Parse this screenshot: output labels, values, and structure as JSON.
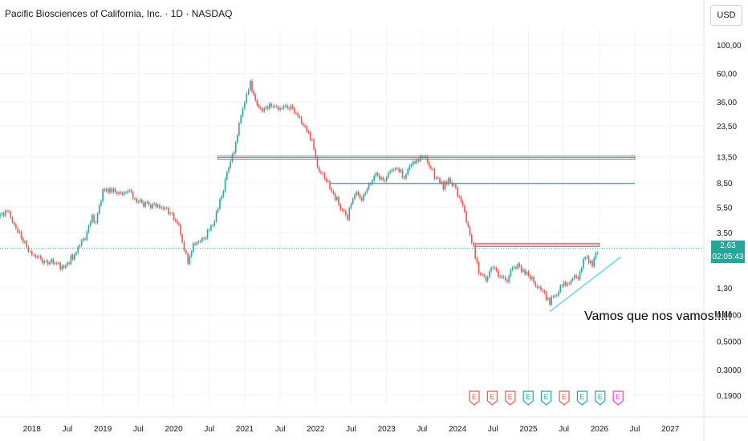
{
  "header": {
    "title": "Pacific Biosciences of California, Inc. · 1D · NASDAQ",
    "currency": "USD"
  },
  "price_tag": {
    "price": "2,63",
    "countdown": "02:05:43",
    "color": "#26a69a"
  },
  "annotation": "Vamos que nos vamos!!!!!",
  "colors": {
    "up": "#26a69a",
    "down": "#ef5350",
    "trendline": "#7fdbe4",
    "resistance": "#808080",
    "support": "#26a69a",
    "earnings_up": "#26a69a",
    "earnings_down": "#ef5350",
    "earnings_future": "#e040fb"
  },
  "earnings_markers": [
    {
      "label": "E",
      "color": "down"
    },
    {
      "label": "E",
      "color": "down"
    },
    {
      "label": "E",
      "color": "down"
    },
    {
      "label": "E",
      "color": "up"
    },
    {
      "label": "E",
      "color": "up"
    },
    {
      "label": "E",
      "color": "down"
    },
    {
      "label": "E",
      "color": "up"
    },
    {
      "label": "E",
      "color": "up"
    },
    {
      "label": "E",
      "color": "future"
    }
  ],
  "chart_data": {
    "type": "line",
    "series": [
      {
        "values": [
          [
            2017.55,
            4.6
          ],
          [
            2017.65,
            5.4
          ],
          [
            2017.75,
            4.0
          ],
          [
            2017.85,
            3.2
          ],
          [
            2017.95,
            2.5
          ],
          [
            2018.0,
            2.3
          ],
          [
            2018.15,
            2.1
          ],
          [
            2018.3,
            2.05
          ],
          [
            2018.45,
            1.85
          ],
          [
            2018.55,
            2.2
          ],
          [
            2018.65,
            2.6
          ],
          [
            2018.75,
            3.2
          ],
          [
            2018.85,
            4.5
          ],
          [
            2018.9,
            4.0
          ],
          [
            2019.0,
            7.6
          ],
          [
            2019.1,
            7.3
          ],
          [
            2019.25,
            7.1
          ],
          [
            2019.35,
            7.2
          ],
          [
            2019.5,
            6.2
          ],
          [
            2019.6,
            5.8
          ],
          [
            2019.75,
            5.5
          ],
          [
            2019.9,
            5.3
          ],
          [
            2019.95,
            5.0
          ],
          [
            2020.05,
            4.3
          ],
          [
            2020.12,
            3.0
          ],
          [
            2020.2,
            2.0
          ],
          [
            2020.3,
            3.0
          ],
          [
            2020.45,
            3.3
          ],
          [
            2020.55,
            4.0
          ],
          [
            2020.65,
            6.0
          ],
          [
            2020.75,
            10.0
          ],
          [
            2020.85,
            15.0
          ],
          [
            2020.92,
            25.0
          ],
          [
            2021.0,
            37.0
          ],
          [
            2021.08,
            52.0
          ],
          [
            2021.15,
            35.0
          ],
          [
            2021.25,
            29.0
          ],
          [
            2021.35,
            35.0
          ],
          [
            2021.45,
            32.0
          ],
          [
            2021.55,
            33.0
          ],
          [
            2021.65,
            32.0
          ],
          [
            2021.75,
            28.0
          ],
          [
            2021.85,
            24.0
          ],
          [
            2021.95,
            18.0
          ],
          [
            2022.05,
            10.0
          ],
          [
            2022.15,
            9.0
          ],
          [
            2022.25,
            7.0
          ],
          [
            2022.35,
            5.5
          ],
          [
            2022.45,
            4.6
          ],
          [
            2022.55,
            7.0
          ],
          [
            2022.65,
            6.5
          ],
          [
            2022.75,
            8.0
          ],
          [
            2022.85,
            10.0
          ],
          [
            2022.95,
            9.0
          ],
          [
            2023.05,
            10.0
          ],
          [
            2023.15,
            11.0
          ],
          [
            2023.25,
            9.5
          ],
          [
            2023.35,
            12.0
          ],
          [
            2023.45,
            13.0
          ],
          [
            2023.5,
            14.0
          ],
          [
            2023.6,
            12.0
          ],
          [
            2023.7,
            9.0
          ],
          [
            2023.8,
            8.0
          ],
          [
            2023.9,
            9.0
          ],
          [
            2024.0,
            7.0
          ],
          [
            2024.1,
            5.0
          ],
          [
            2024.2,
            3.0
          ],
          [
            2024.3,
            1.7
          ],
          [
            2024.4,
            1.5
          ],
          [
            2024.5,
            1.9
          ],
          [
            2024.6,
            1.6
          ],
          [
            2024.7,
            1.5
          ],
          [
            2024.8,
            2.0
          ],
          [
            2024.9,
            1.8
          ],
          [
            2025.0,
            1.6
          ],
          [
            2025.1,
            1.4
          ],
          [
            2025.2,
            1.2
          ],
          [
            2025.3,
            1.0
          ],
          [
            2025.4,
            1.2
          ],
          [
            2025.5,
            1.4
          ],
          [
            2025.6,
            1.5
          ],
          [
            2025.7,
            1.6
          ],
          [
            2025.8,
            2.3
          ],
          [
            2025.9,
            2.0
          ],
          [
            2026.0,
            2.63
          ]
        ]
      }
    ],
    "levels": [
      {
        "value": 13.3,
        "from": 2020.62,
        "to": 2026.5,
        "style": "resistance"
      },
      {
        "value": 8.4,
        "from": 2022.2,
        "to": 2026.5,
        "style": "support"
      },
      {
        "value": 2.8,
        "from": 2024.25,
        "to": 2026.0,
        "style": "resistance"
      },
      {
        "value": 2.63,
        "from": 2017.55,
        "to": 2027.45,
        "style": "last-price"
      }
    ],
    "trendline": {
      "from": [
        2025.3,
        0.85
      ],
      "to": [
        2026.3,
        2.25
      ]
    },
    "x_ticks": [
      "2018",
      "Jul",
      "2019",
      "Jul",
      "2020",
      "Jul",
      "2021",
      "Jul",
      "2022",
      "Jul",
      "2023",
      "Jul",
      "2024",
      "Jul",
      "2025",
      "Jul",
      "2026",
      "Jul",
      "2027"
    ],
    "x_tick_values": [
      2018.0,
      2018.5,
      2019.0,
      2019.5,
      2020.0,
      2020.5,
      2021.0,
      2021.5,
      2022.0,
      2022.5,
      2023.0,
      2023.5,
      2024.0,
      2024.5,
      2025.0,
      2025.5,
      2026.0,
      2026.5,
      2027.0
    ],
    "y_ticks": [
      "100,00",
      "60,00",
      "36,00",
      "23,50",
      "13,50",
      "8,50",
      "5,50",
      "3,50",
      "1,30",
      "0,8000",
      "0,5000",
      "0,3000",
      "0,1900"
    ],
    "y_tick_values": [
      100,
      60,
      36,
      23.5,
      13.5,
      8.5,
      5.5,
      3.5,
      1.3,
      0.8,
      0.5,
      0.3,
      0.19
    ],
    "x_range": [
      2017.55,
      2027.45
    ],
    "y_range": [
      0.16,
      135
    ],
    "y_scale": "log",
    "grid": true,
    "legend": "none"
  }
}
